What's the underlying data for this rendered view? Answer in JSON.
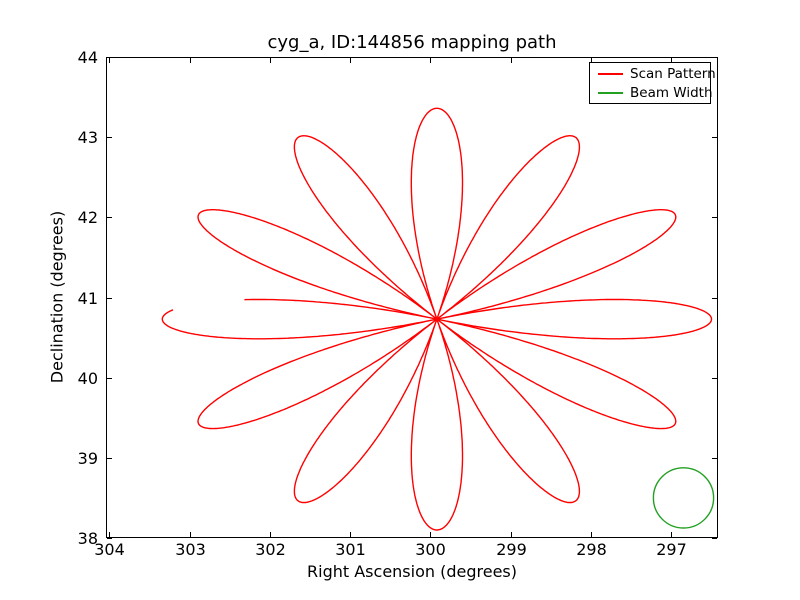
{
  "chart_data": {
    "type": "line",
    "title": "cyg_a, ID:144856 mapping path",
    "xlabel": "Right Ascension (degrees)",
    "ylabel": "Declination (degrees)",
    "x_axis_inverted": true,
    "xlim": [
      304.04,
      296.42
    ],
    "ylim": [
      38,
      44
    ],
    "xticks": [
      304,
      303,
      302,
      301,
      300,
      299,
      298,
      297
    ],
    "yticks": [
      38,
      39,
      40,
      41,
      42,
      43,
      44
    ],
    "grid": false,
    "tick_direction": "in",
    "legend_position": "upper right",
    "axes_color": "#000000",
    "background_color": "#ffffff",
    "series": [
      {
        "name": "Scan Pattern",
        "curve": "daisy_scan",
        "color": "#ff0000",
        "line_width": 1.4,
        "center_ra_deg": 299.92,
        "center_dec_deg": 40.73,
        "petal_radius_deg": 2.63,
        "num_petals": 12,
        "petal_angle_step_deg": 30,
        "phase0_deg": 15,
        "t_start": -0.049,
        "t_end": 0.9375,
        "ra_stretch_factor": 1.3
      },
      {
        "name": "Beam Width",
        "curve": "circle",
        "color": "#22a022",
        "line_width": 1.4,
        "center_ra_deg": 296.85,
        "center_dec_deg": 38.5,
        "radius_deg": 0.375
      }
    ],
    "legend": {
      "entries": [
        {
          "label": "Scan Pattern",
          "color": "#ff0000"
        },
        {
          "label": "Beam Width",
          "color": "#22a022"
        }
      ]
    }
  }
}
